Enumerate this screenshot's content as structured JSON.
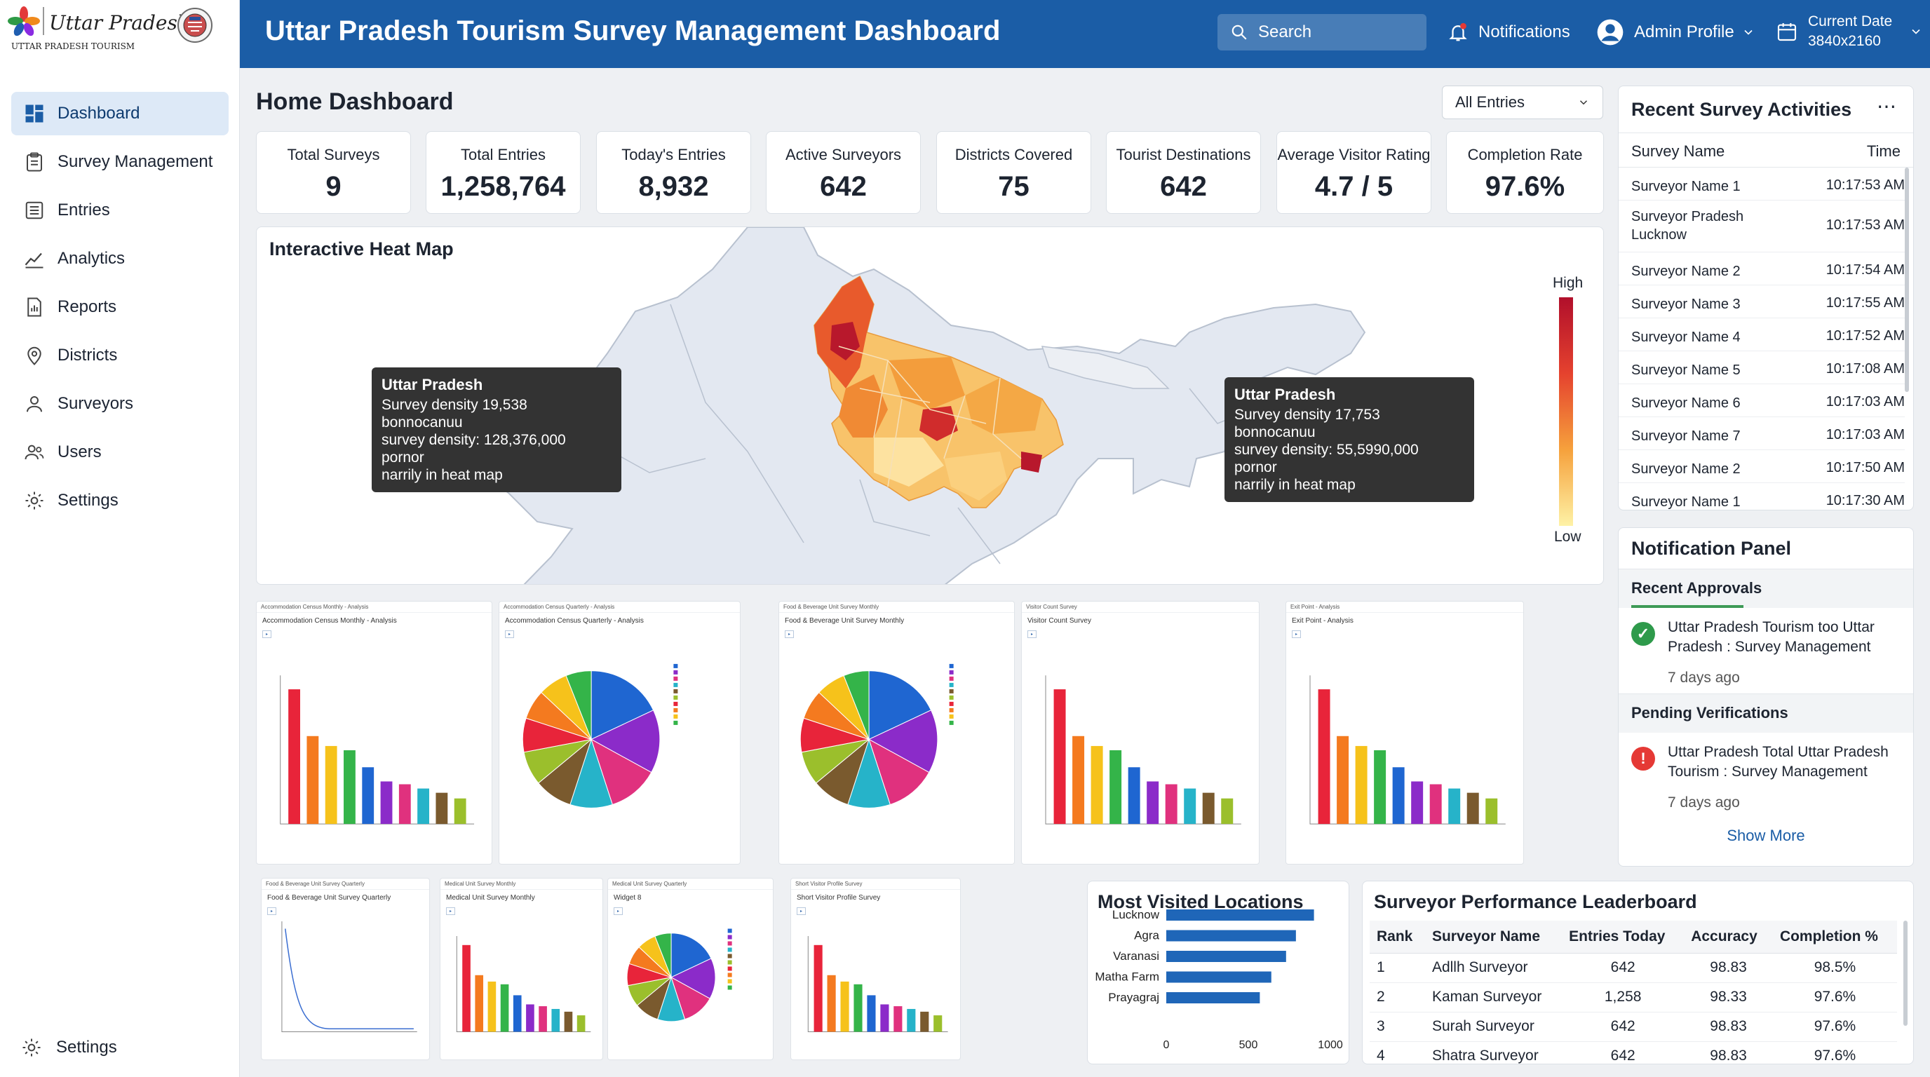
{
  "brand": {
    "logo_script": "Uttar Pradesh",
    "logo_caption": "UTTAR PRADESH TOURISM"
  },
  "sidebar": {
    "items": [
      {
        "label": "Dashboard",
        "icon": "dashboard-icon",
        "active": true
      },
      {
        "label": "Survey Management",
        "icon": "clipboard-icon"
      },
      {
        "label": "Entries",
        "icon": "list-icon"
      },
      {
        "label": "Analytics",
        "icon": "trend-icon"
      },
      {
        "label": "Reports",
        "icon": "report-icon"
      },
      {
        "label": "Districts",
        "icon": "location-pin-icon"
      },
      {
        "label": "Surveyors",
        "icon": "person-icon"
      },
      {
        "label": "Users",
        "icon": "users-icon"
      },
      {
        "label": "Settings",
        "icon": "gear-icon"
      }
    ],
    "bottom_settings": "Settings"
  },
  "header": {
    "title": "Uttar Pradesh Tourism Survey Management Dashboard",
    "search_label": "Search",
    "notifications_label": "Notifications",
    "profile_label": "Admin Profile",
    "date_label": "Current Date",
    "date_value": "3840x2160"
  },
  "page": {
    "title": "Home Dashboard",
    "filter_value": "All Entries"
  },
  "stats": [
    {
      "label": "Total Surveys",
      "value": "9"
    },
    {
      "label": "Total Entries",
      "value": "1,258,764"
    },
    {
      "label": "Today's Entries",
      "value": "8,932"
    },
    {
      "label": "Active Surveyors",
      "value": "642"
    },
    {
      "label": "Districts Covered",
      "value": "75"
    },
    {
      "label": "Tourist Destinations",
      "value": "642"
    },
    {
      "label": "Average Visitor Rating",
      "value": "4.7 / 5"
    },
    {
      "label": "Completion Rate",
      "value": "97.6%"
    }
  ],
  "heatmap": {
    "title": "Interactive Heat Map",
    "legend_high": "High",
    "legend_low": "Low",
    "tooltip_left": {
      "title": "Uttar Pradesh",
      "line1": "Survey density 19,538 bonnocanuu",
      "line2": "survey density: 128,376,000 pornor",
      "line3": "narrily in heat map"
    },
    "tooltip_right": {
      "title": "Uttar Pradesh",
      "line1": "Survey density 17,753 bonnocanuu",
      "line2": "survey density: 55,5990,000 pornor",
      "line3": "narrily in heat map"
    },
    "colors": {
      "high": "#b10f2b",
      "mid": "#f6a13c",
      "low": "#fef2a6"
    }
  },
  "thumbnails": [
    {
      "header": "Accommodation Census Monthly - Analysis",
      "title": "Accommodation Census Monthly - Analysis",
      "chart": "bar"
    },
    {
      "header": "Accommodation Census Quarterly - Analysis",
      "title": "Accommodation Census Quarterly - Analysis",
      "chart": "pie"
    },
    {
      "header": "Food & Beverage Unit Survey Monthly",
      "title": "Food & Beverage Unit Survey Monthly",
      "chart": "pie"
    },
    {
      "header": "Visitor Count Survey",
      "title": "Visitor Count Survey",
      "chart": "bar"
    },
    {
      "header": "Exit Point - Analysis",
      "title": "Exit Point - Analysis",
      "chart": "bar"
    },
    {
      "header": "Food & Beverage Unit Survey Quarterly",
      "title": "Food & Beverage Unit Survey Quarterly",
      "chart": "line"
    },
    {
      "header": "Medical Unit Survey Monthly",
      "title": "Medical Unit Survey Monthly",
      "chart": "bar"
    },
    {
      "header": "Medical Unit Survey Quarterly",
      "title": "Widget 8",
      "chart": "pie"
    },
    {
      "header": "Short Visitor Profile Survey",
      "title": "Short Visitor Profile Survey",
      "chart": "bar"
    }
  ],
  "recent": {
    "title": "Recent Survey Activities",
    "col_name": "Survey Name",
    "col_time": "Time",
    "rows": [
      {
        "name": "Surveyor Name 1",
        "time": "10:17:53 AM"
      },
      {
        "name": "Surveyor Pradesh Lucknow",
        "time": "10:17:53 AM"
      },
      {
        "name": "Surveyor Name 2",
        "time": "10:17:54 AM"
      },
      {
        "name": "Surveyor Name 3",
        "time": "10:17:55 AM"
      },
      {
        "name": "Surveyor Name 4",
        "time": "10:17:52 AM"
      },
      {
        "name": "Surveyor Name 5",
        "time": "10:17:08 AM"
      },
      {
        "name": "Surveyor Name 6",
        "time": "10:17:03 AM"
      },
      {
        "name": "Surveyor Name 7",
        "time": "10:17:03 AM"
      },
      {
        "name": "Surveyor Name 2",
        "time": "10:17:50 AM"
      },
      {
        "name": "Surveyor Name 1",
        "time": "10:17:30 AM"
      }
    ]
  },
  "notifications": {
    "title": "Notification Panel",
    "approvals_title": "Recent Approvals",
    "approval_text": "Uttar Pradesh Tourism too Uttar Pradesh : Survey Management",
    "approval_age": "7 days ago",
    "pending_title": "Pending Verifications",
    "pending_text": "Uttar Pradesh Total Uttar Pradesh Tourism : Survey Management",
    "pending_age": "7 days ago",
    "show_more": "Show More"
  },
  "locations": {
    "title": "Most Visited Locations",
    "chart_data": {
      "type": "bar",
      "orientation": "horizontal",
      "categories": [
        "Lucknow",
        "Agra",
        "Varanasi",
        "Matha Farm",
        "Prayagraj"
      ],
      "values": [
        900,
        790,
        730,
        640,
        570
      ],
      "xlim": [
        0,
        1000
      ],
      "xticks": [
        0,
        500,
        1000
      ],
      "color": "#1f66b8"
    }
  },
  "leaderboard": {
    "title": "Surveyor Performance Leaderboard",
    "columns": [
      "Rank",
      "Surveyor Name",
      "Entries Today",
      "Accuracy",
      "Completion %"
    ],
    "rows": [
      [
        "1",
        "Adllh Surveyor",
        "642",
        "98.83",
        "98.5%"
      ],
      [
        "2",
        "Kaman Surveyor",
        "1,258",
        "98.33",
        "97.6%"
      ],
      [
        "3",
        "Surah Surveyor",
        "642",
        "98.83",
        "97.6%"
      ],
      [
        "4",
        "Shatra Surveyor",
        "642",
        "98.83",
        "97.6%"
      ]
    ]
  }
}
